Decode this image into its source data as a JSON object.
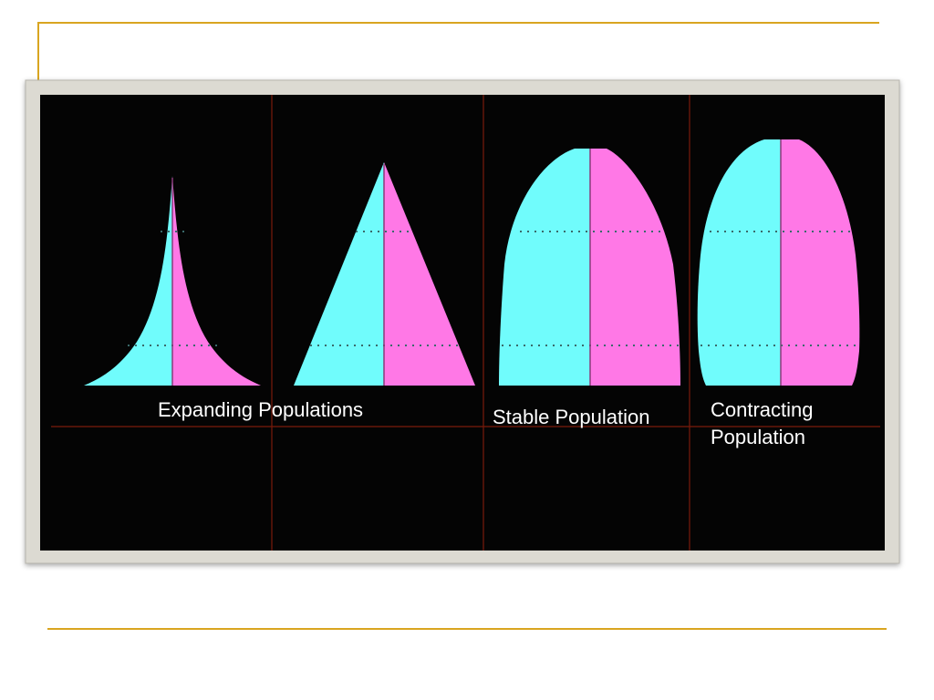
{
  "labels": {
    "expanding": "Expanding Populations",
    "stable": "Stable Population",
    "contracting": [
      "Contracting",
      "Population"
    ]
  }
}
